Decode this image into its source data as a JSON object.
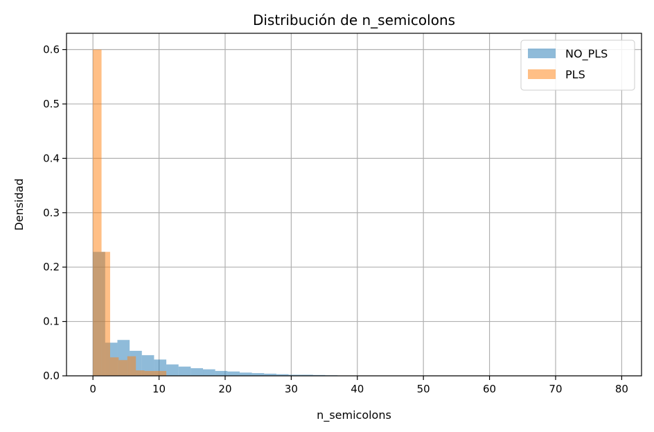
{
  "chart_data": {
    "type": "histogram",
    "title": "Distribución de n_semicolons",
    "xlabel": "n_semicolons",
    "ylabel": "Densidad",
    "xlim": [
      -4,
      83
    ],
    "ylim": [
      0,
      0.63
    ],
    "xticks": [
      0,
      10,
      20,
      30,
      40,
      50,
      60,
      70,
      80
    ],
    "yticks": [
      0.0,
      0.1,
      0.2,
      0.3,
      0.4,
      0.5,
      0.6
    ],
    "xtick_labels": [
      "0",
      "10",
      "20",
      "30",
      "40",
      "50",
      "60",
      "70",
      "80"
    ],
    "ytick_labels": [
      "0.0",
      "0.1",
      "0.2",
      "0.3",
      "0.4",
      "0.5",
      "0.6"
    ],
    "grid": true,
    "legend_position": "top-right",
    "series": [
      {
        "name": "NO_PLS",
        "color": "#1f77b4",
        "opacity": 0.5,
        "bin_edges": [
          0,
          1.85,
          3.7,
          5.55,
          7.4,
          9.25,
          11.1,
          12.95,
          14.8,
          16.65,
          18.5,
          20.35,
          22.2,
          24.05,
          25.9,
          27.75,
          29.6,
          31.45,
          33.3,
          35.15,
          37.0
        ],
        "values": [
          0.228,
          0.061,
          0.066,
          0.046,
          0.038,
          0.03,
          0.021,
          0.017,
          0.014,
          0.012,
          0.009,
          0.008,
          0.006,
          0.005,
          0.004,
          0.003,
          0.002,
          0.002,
          0.0015,
          0.001
        ]
      },
      {
        "name": "PLS",
        "color": "#ff7f0e",
        "opacity": 0.5,
        "bin_edges": [
          0,
          1.3,
          2.6,
          3.9,
          5.2,
          6.5,
          7.8,
          9.1,
          10.4,
          11.1
        ],
        "values": [
          0.6,
          0.228,
          0.034,
          0.029,
          0.036,
          0.01,
          0.009,
          0.009,
          0.009
        ]
      }
    ]
  }
}
